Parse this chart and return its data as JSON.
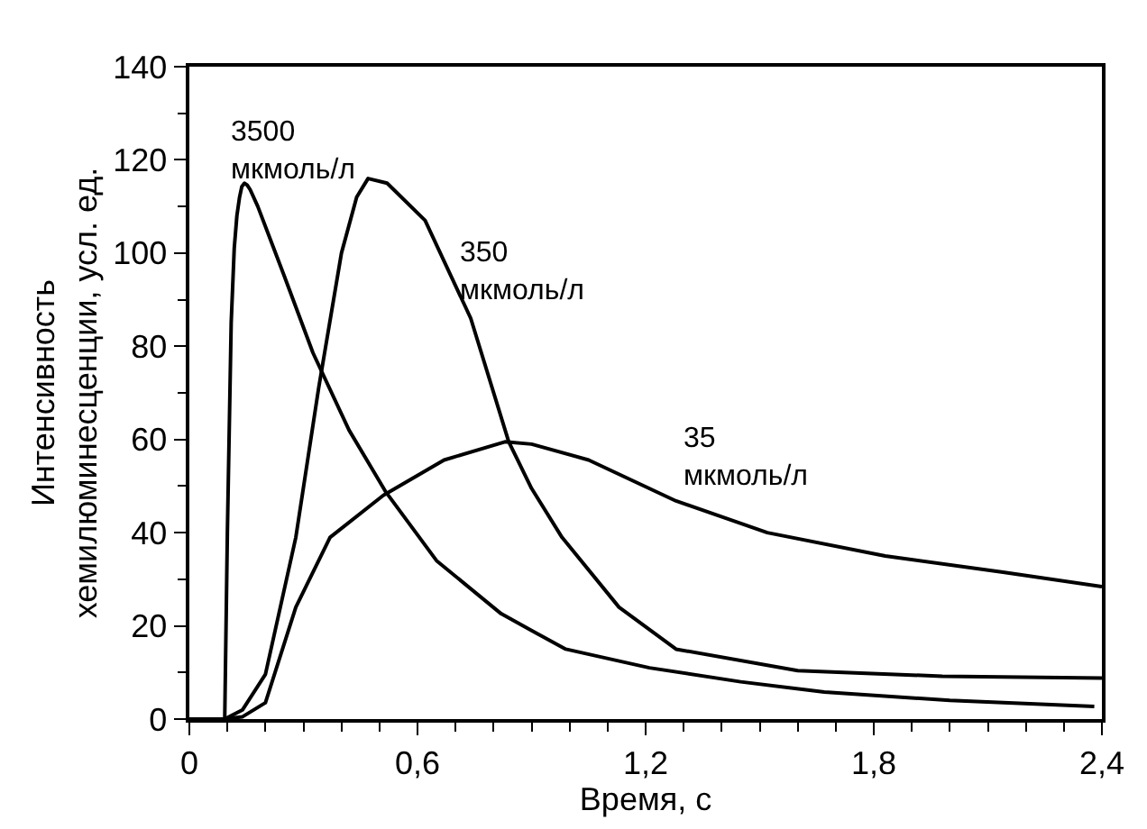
{
  "chart_data": {
    "type": "line",
    "xlabel": "Время, с",
    "ylabel": "Интенсивность\nхемилюминесценции, усл. ед.",
    "xlim": [
      0,
      2.4
    ],
    "xticks": [
      0,
      {
        "value": 0.6,
        "label": "0,6"
      },
      {
        "value": 1.2,
        "label": "1,2"
      },
      {
        "value": 1.8,
        "label": "1,8"
      },
      {
        "value": 2.4,
        "label": "2,4"
      }
    ],
    "ylim": [
      0,
      140
    ],
    "yticks": [
      0,
      20,
      40,
      60,
      80,
      100,
      120,
      140
    ],
    "legend": false,
    "marker": "none",
    "line_style": "solid",
    "series": [
      {
        "name": "3500\nмкмоль/л",
        "color": "#000000",
        "x": [
          0,
          0.05,
          0.093,
          0.1,
          0.11,
          0.118,
          0.125,
          0.132,
          0.138,
          0.145,
          0.152,
          0.16,
          0.18,
          0.25,
          0.325,
          0.42,
          0.517,
          0.65,
          0.82,
          0.9,
          0.99,
          1.21,
          1.45,
          1.67,
          2.0,
          2.38
        ],
        "values": [
          0,
          0,
          0,
          40,
          85,
          101,
          108,
          112,
          114.3,
          115,
          114.6,
          113.6,
          110,
          95,
          78.6,
          62,
          48.7,
          34,
          22.6,
          19,
          15,
          11,
          8,
          5.8,
          4,
          2.7
        ]
      },
      {
        "name": "350\nмкмоль/л",
        "color": "#000000",
        "x": [
          0,
          0.05,
          0.093,
          0.14,
          0.2,
          0.28,
          0.34,
          0.4,
          0.44,
          0.47,
          0.52,
          0.62,
          0.74,
          0.84,
          0.9,
          0.98,
          1.13,
          1.28,
          1.6,
          1.98,
          2.4
        ],
        "values": [
          0,
          0,
          0,
          2,
          9.6,
          39,
          71,
          100,
          112,
          116,
          115,
          107,
          86,
          59.5,
          49.5,
          39,
          24,
          15,
          10.4,
          9.2,
          8.8
        ]
      },
      {
        "name": "35\nмкмоль/л",
        "color": "#000000",
        "x": [
          0,
          0.05,
          0.093,
          0.14,
          0.2,
          0.28,
          0.37,
          0.51,
          0.67,
          0.83,
          0.9,
          1.05,
          1.28,
          1.52,
          1.83,
          2.14,
          2.4
        ],
        "values": [
          0,
          0,
          0,
          0.5,
          3.5,
          24,
          39,
          48,
          55.6,
          59.5,
          59,
          55.6,
          46.8,
          40,
          35,
          31.5,
          28.4
        ]
      }
    ]
  }
}
